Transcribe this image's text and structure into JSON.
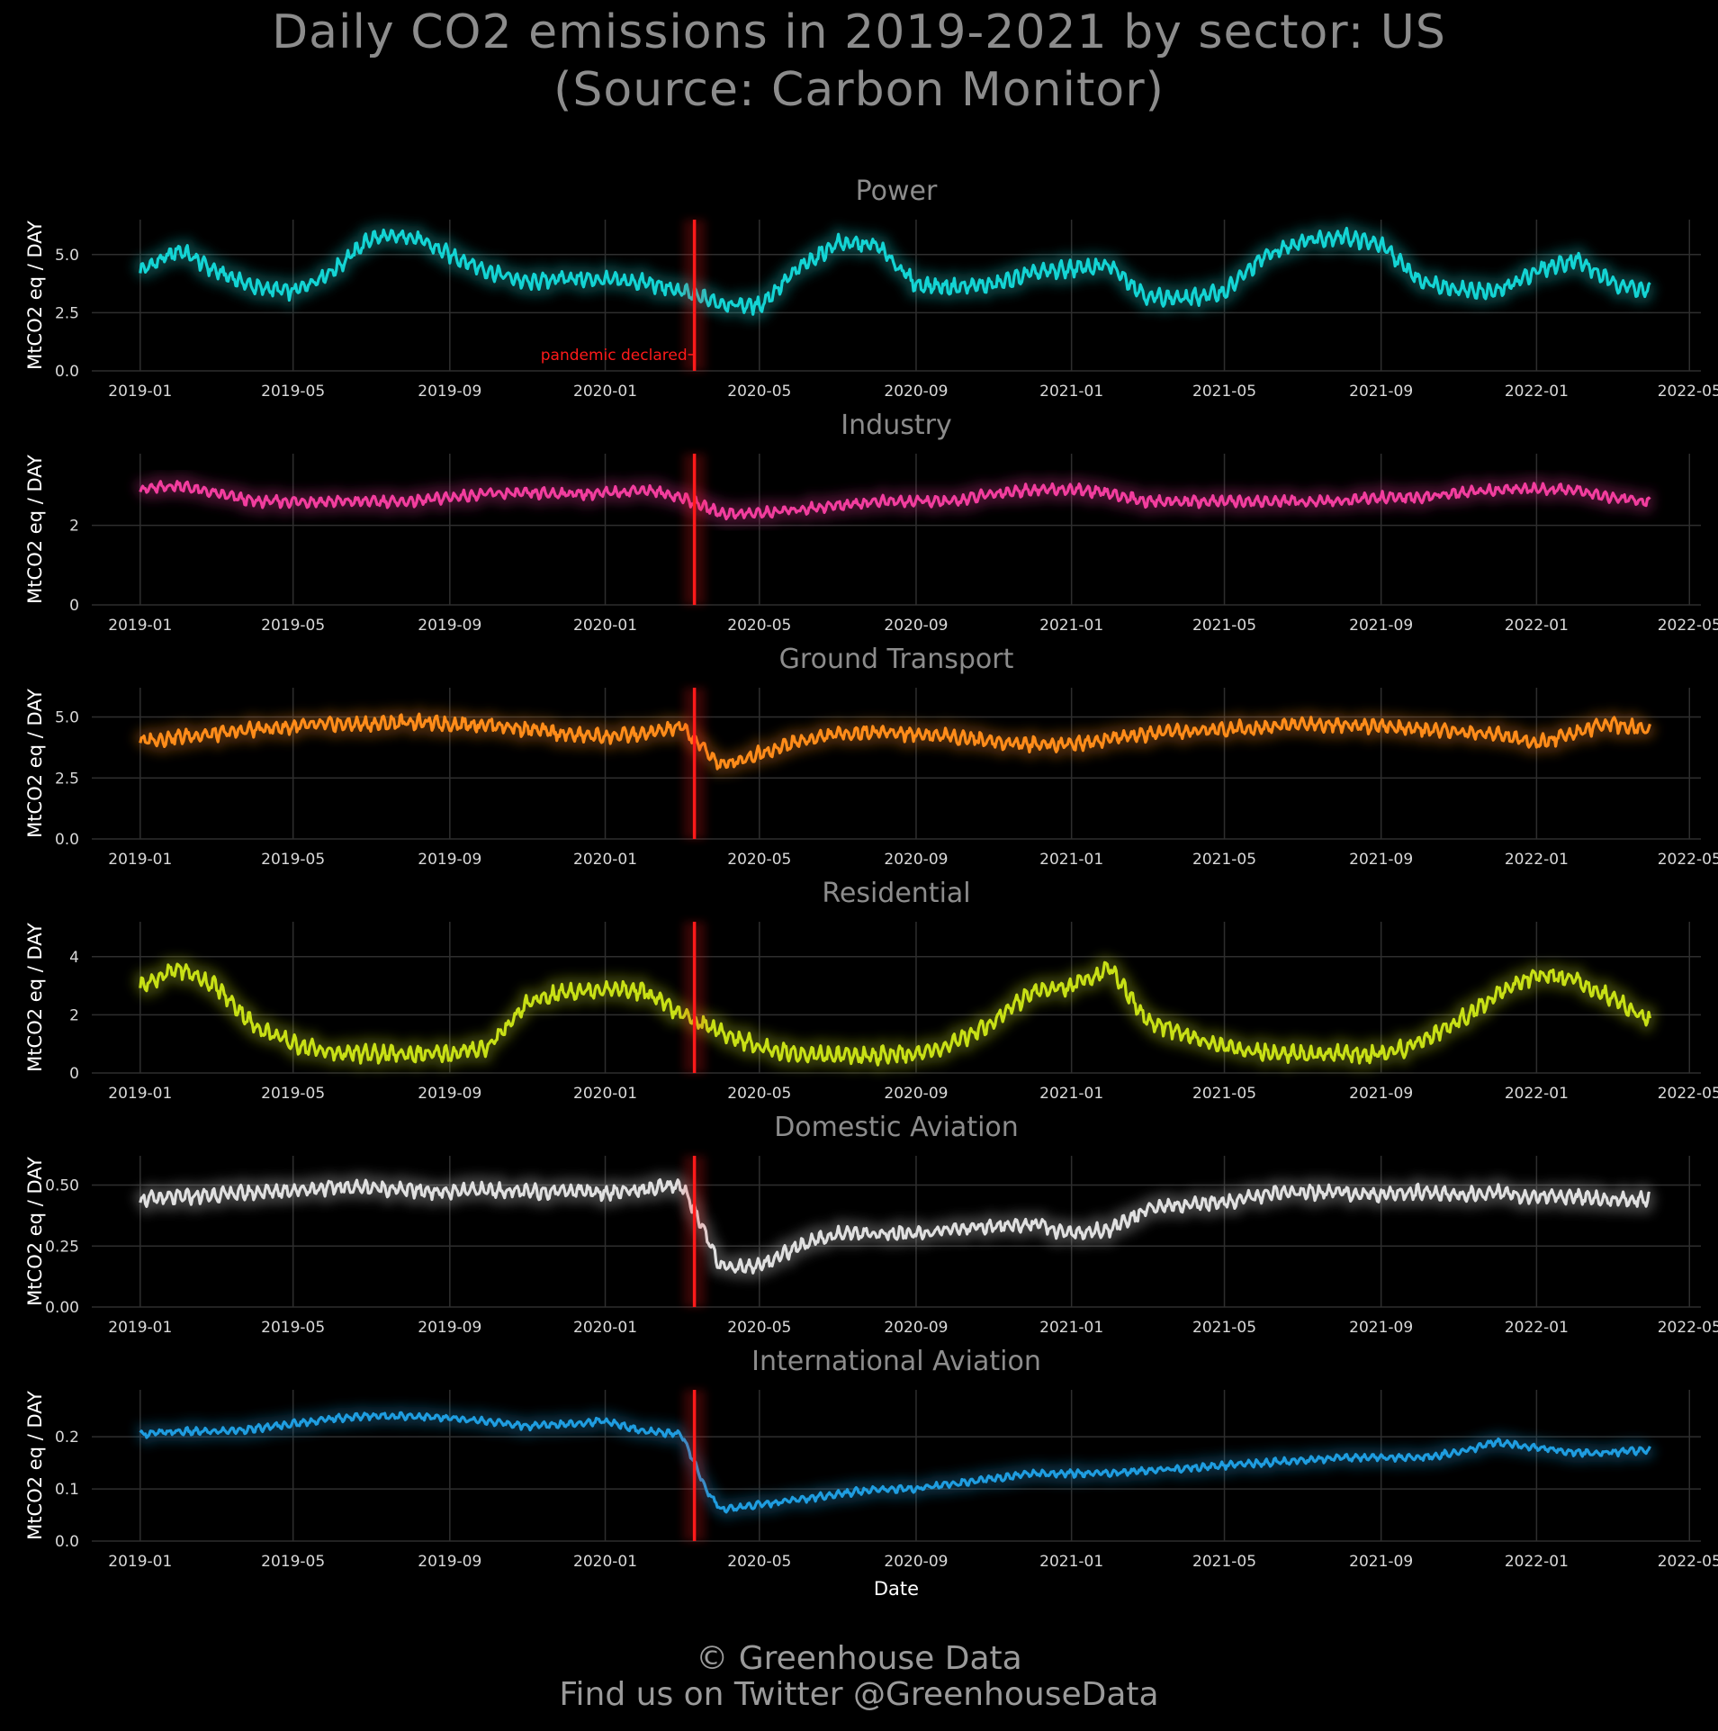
{
  "title_lines": [
    "Daily CO2 emissions in 2019-2021 by sector: US",
    "(Source: Carbon Monitor)"
  ],
  "footer_lines": [
    "© Greenhouse Data",
    "Find us on Twitter @GreenhouseData"
  ],
  "colors": {
    "background": "#000000",
    "title": "#8c8c8c",
    "panel_title": "#8c8c8c",
    "tick": "#d9d9d9",
    "grid": "#2e2e2e",
    "event_line": "#ff1a1a"
  },
  "chart_data": [
    {
      "type": "line",
      "title": "Power",
      "ylabel": "MtCO2 eq / DAY",
      "xlabel": "",
      "color": "#14d4d4",
      "ylim": [
        0,
        6.5
      ],
      "yticks": [
        0,
        2.5,
        5.0
      ],
      "ytick_labels": [
        "0.0",
        "2.5",
        "5.0"
      ],
      "x_range": [
        "2018-11-24",
        "2022-05-10"
      ],
      "xticks": [
        "2019-01",
        "2019-05",
        "2019-09",
        "2020-01",
        "2020-05",
        "2020-09",
        "2021-01",
        "2021-05",
        "2021-09",
        "2022-01",
        "2022-05"
      ],
      "annotation": {
        "text": "pandemic declared",
        "x": "2020-03-11"
      },
      "series": [
        {
          "x": [
            "2019-01-01",
            "2019-02-01",
            "2019-03-01",
            "2019-04-01",
            "2019-05-01",
            "2019-06-01",
            "2019-07-01",
            "2019-08-01",
            "2019-09-01",
            "2019-10-01",
            "2019-11-01",
            "2019-12-01",
            "2020-01-01",
            "2020-02-01",
            "2020-03-01",
            "2020-04-01",
            "2020-05-01",
            "2020-06-01",
            "2020-07-01",
            "2020-08-01",
            "2020-09-01",
            "2020-10-01",
            "2020-11-01",
            "2020-12-01",
            "2021-01-01",
            "2021-02-01",
            "2021-03-01",
            "2021-04-01",
            "2021-05-01",
            "2021-06-01",
            "2021-07-01",
            "2021-08-01",
            "2021-09-01",
            "2021-10-01",
            "2021-11-01",
            "2021-12-01",
            "2022-01-01",
            "2022-02-01",
            "2022-03-01",
            "2022-03-31"
          ],
          "y": [
            4.3,
            5.2,
            4.3,
            3.6,
            3.4,
            4.3,
            5.7,
            5.8,
            5.0,
            4.3,
            3.8,
            4.0,
            3.9,
            3.8,
            3.4,
            2.9,
            2.8,
            4.4,
            5.5,
            5.4,
            3.7,
            3.6,
            3.7,
            4.2,
            4.4,
            4.5,
            3.2,
            3.1,
            3.4,
            4.9,
            5.6,
            5.8,
            5.4,
            3.9,
            3.5,
            3.4,
            4.3,
            4.8,
            3.8,
            3.4
          ],
          "amp": 0.4
        }
      ]
    },
    {
      "type": "line",
      "title": "Industry",
      "ylabel": "MtCO2 eq / DAY",
      "xlabel": "",
      "color": "#f23d9e",
      "ylim": [
        0,
        3.8
      ],
      "yticks": [
        0,
        2
      ],
      "ytick_labels": [
        "0",
        "2"
      ],
      "x_range": [
        "2018-11-24",
        "2022-05-10"
      ],
      "xticks": [
        "2019-01",
        "2019-05",
        "2019-09",
        "2020-01",
        "2020-05",
        "2020-09",
        "2021-01",
        "2021-05",
        "2021-09",
        "2022-01",
        "2022-05"
      ],
      "series": [
        {
          "x": [
            "2019-01-01",
            "2019-02-01",
            "2019-03-01",
            "2019-04-01",
            "2019-05-01",
            "2019-06-01",
            "2019-07-01",
            "2019-08-01",
            "2019-09-01",
            "2019-10-01",
            "2019-11-01",
            "2019-12-01",
            "2020-01-01",
            "2020-02-01",
            "2020-03-01",
            "2020-04-01",
            "2020-05-01",
            "2020-06-01",
            "2020-07-01",
            "2020-08-01",
            "2020-09-01",
            "2020-10-01",
            "2020-11-01",
            "2020-12-01",
            "2021-01-01",
            "2021-02-01",
            "2021-03-01",
            "2021-04-01",
            "2021-05-01",
            "2021-06-01",
            "2021-07-01",
            "2021-08-01",
            "2021-09-01",
            "2021-10-01",
            "2021-11-01",
            "2021-12-01",
            "2022-01-01",
            "2022-02-01",
            "2022-03-01",
            "2022-03-31"
          ],
          "y": [
            2.9,
            3.0,
            2.8,
            2.6,
            2.6,
            2.6,
            2.6,
            2.6,
            2.7,
            2.8,
            2.8,
            2.8,
            2.8,
            2.9,
            2.7,
            2.3,
            2.3,
            2.4,
            2.5,
            2.6,
            2.6,
            2.6,
            2.8,
            2.9,
            2.9,
            2.8,
            2.6,
            2.6,
            2.6,
            2.6,
            2.6,
            2.6,
            2.7,
            2.7,
            2.8,
            2.9,
            2.9,
            2.9,
            2.7,
            2.6
          ],
          "amp": 0.16
        }
      ]
    },
    {
      "type": "line",
      "title": "Ground Transport",
      "ylabel": "MtCO2 eq / DAY",
      "xlabel": "",
      "color": "#ff8c1a",
      "ylim": [
        0,
        6.2
      ],
      "yticks": [
        0,
        2.5,
        5.0
      ],
      "ytick_labels": [
        "0.0",
        "2.5",
        "5.0"
      ],
      "x_range": [
        "2018-11-24",
        "2022-05-10"
      ],
      "xticks": [
        "2019-01",
        "2019-05",
        "2019-09",
        "2020-01",
        "2020-05",
        "2020-09",
        "2021-01",
        "2021-05",
        "2021-09",
        "2022-01",
        "2022-05"
      ],
      "series": [
        {
          "x": [
            "2019-01-01",
            "2019-02-01",
            "2019-03-01",
            "2019-04-01",
            "2019-05-01",
            "2019-06-01",
            "2019-07-01",
            "2019-08-01",
            "2019-09-01",
            "2019-10-01",
            "2019-11-01",
            "2019-12-01",
            "2020-01-01",
            "2020-02-01",
            "2020-03-01",
            "2020-04-01",
            "2020-05-01",
            "2020-06-01",
            "2020-07-01",
            "2020-08-01",
            "2020-09-01",
            "2020-10-01",
            "2020-11-01",
            "2020-12-01",
            "2021-01-01",
            "2021-02-01",
            "2021-03-01",
            "2021-04-01",
            "2021-05-01",
            "2021-06-01",
            "2021-07-01",
            "2021-08-01",
            "2021-09-01",
            "2021-10-01",
            "2021-11-01",
            "2021-12-01",
            "2022-01-01",
            "2022-02-01",
            "2022-03-01",
            "2022-03-31"
          ],
          "y": [
            4.0,
            4.2,
            4.3,
            4.5,
            4.6,
            4.7,
            4.7,
            4.8,
            4.7,
            4.7,
            4.5,
            4.3,
            4.2,
            4.3,
            4.6,
            3.0,
            3.5,
            4.0,
            4.3,
            4.4,
            4.3,
            4.2,
            4.0,
            3.9,
            3.9,
            4.1,
            4.3,
            4.4,
            4.5,
            4.6,
            4.7,
            4.7,
            4.6,
            4.5,
            4.4,
            4.3,
            3.9,
            4.4,
            4.7,
            4.5
          ],
          "amp": 0.35
        }
      ]
    },
    {
      "type": "line",
      "title": "Residential",
      "ylabel": "MtCO2 eq / DAY",
      "xlabel": "",
      "color": "#c8e016",
      "ylim": [
        0,
        5.2
      ],
      "yticks": [
        0,
        2,
        4
      ],
      "ytick_labels": [
        "0",
        "2",
        "4"
      ],
      "x_range": [
        "2018-11-24",
        "2022-05-10"
      ],
      "xticks": [
        "2019-01",
        "2019-05",
        "2019-09",
        "2020-01",
        "2020-05",
        "2020-09",
        "2021-01",
        "2021-05",
        "2021-09",
        "2022-01",
        "2022-05"
      ],
      "series": [
        {
          "x": [
            "2019-01-01",
            "2019-02-01",
            "2019-03-01",
            "2019-04-01",
            "2019-05-01",
            "2019-06-01",
            "2019-07-01",
            "2019-08-01",
            "2019-09-01",
            "2019-10-01",
            "2019-11-01",
            "2019-12-01",
            "2020-01-01",
            "2020-02-01",
            "2020-03-01",
            "2020-04-01",
            "2020-05-01",
            "2020-06-01",
            "2020-07-01",
            "2020-08-01",
            "2020-09-01",
            "2020-10-01",
            "2020-11-01",
            "2020-12-01",
            "2021-01-01",
            "2021-02-01",
            "2021-03-01",
            "2021-04-01",
            "2021-05-01",
            "2021-06-01",
            "2021-07-01",
            "2021-08-01",
            "2021-09-01",
            "2021-10-01",
            "2021-11-01",
            "2021-12-01",
            "2022-01-01",
            "2022-02-01",
            "2022-03-01",
            "2022-03-31"
          ],
          "y": [
            3.0,
            3.6,
            3.0,
            1.6,
            1.0,
            0.7,
            0.65,
            0.65,
            0.65,
            0.9,
            2.4,
            2.8,
            2.9,
            2.8,
            2.0,
            1.4,
            0.9,
            0.65,
            0.6,
            0.6,
            0.65,
            1.0,
            1.8,
            2.8,
            3.0,
            3.6,
            1.8,
            1.3,
            0.9,
            0.7,
            0.65,
            0.65,
            0.65,
            1.0,
            1.8,
            2.7,
            3.4,
            3.2,
            2.6,
            1.8
          ],
          "amp": 0.35
        }
      ]
    },
    {
      "type": "line",
      "title": "Domestic Aviation",
      "ylabel": "MtCO2 eq / DAY",
      "xlabel": "",
      "color": "#e0e0e0",
      "ylim": [
        0,
        0.62
      ],
      "yticks": [
        0,
        0.25,
        0.5
      ],
      "ytick_labels": [
        "0.00",
        "0.25",
        "0.50"
      ],
      "x_range": [
        "2018-11-24",
        "2022-05-10"
      ],
      "xticks": [
        "2019-01",
        "2019-05",
        "2019-09",
        "2020-01",
        "2020-05",
        "2020-09",
        "2021-01",
        "2021-05",
        "2021-09",
        "2022-01",
        "2022-05"
      ],
      "series": [
        {
          "x": [
            "2019-01-01",
            "2019-02-01",
            "2019-03-01",
            "2019-04-01",
            "2019-05-01",
            "2019-06-01",
            "2019-07-01",
            "2019-08-01",
            "2019-09-01",
            "2019-10-01",
            "2019-11-01",
            "2019-12-01",
            "2020-01-01",
            "2020-02-01",
            "2020-03-01",
            "2020-03-20",
            "2020-04-01",
            "2020-05-01",
            "2020-06-01",
            "2020-07-01",
            "2020-08-01",
            "2020-09-01",
            "2020-10-01",
            "2020-11-01",
            "2020-12-01",
            "2021-01-01",
            "2021-02-01",
            "2021-03-01",
            "2021-04-01",
            "2021-05-01",
            "2021-06-01",
            "2021-07-01",
            "2021-08-01",
            "2021-09-01",
            "2021-10-01",
            "2021-11-01",
            "2021-12-01",
            "2022-01-01",
            "2022-02-01",
            "2022-03-01",
            "2022-03-31"
          ],
          "y": [
            0.44,
            0.45,
            0.46,
            0.47,
            0.48,
            0.49,
            0.49,
            0.48,
            0.47,
            0.48,
            0.47,
            0.48,
            0.47,
            0.48,
            0.5,
            0.3,
            0.16,
            0.17,
            0.25,
            0.3,
            0.3,
            0.3,
            0.32,
            0.33,
            0.34,
            0.3,
            0.32,
            0.4,
            0.42,
            0.43,
            0.46,
            0.47,
            0.47,
            0.46,
            0.47,
            0.46,
            0.47,
            0.45,
            0.45,
            0.44,
            0.44
          ],
          "amp": 0.035
        }
      ]
    },
    {
      "type": "line",
      "title": "International Aviation",
      "ylabel": "MtCO2 eq / DAY",
      "xlabel": "Date",
      "color": "#1f9de0",
      "ylim": [
        0,
        0.29
      ],
      "yticks": [
        0,
        0.1,
        0.2
      ],
      "ytick_labels": [
        "0.0",
        "0.1",
        "0.2"
      ],
      "x_range": [
        "2018-11-24",
        "2022-05-10"
      ],
      "xticks": [
        "2019-01",
        "2019-05",
        "2019-09",
        "2020-01",
        "2020-05",
        "2020-09",
        "2021-01",
        "2021-05",
        "2021-09",
        "2022-01",
        "2022-05"
      ],
      "series": [
        {
          "x": [
            "2019-01-01",
            "2019-02-01",
            "2019-03-01",
            "2019-04-01",
            "2019-05-01",
            "2019-06-01",
            "2019-07-01",
            "2019-08-01",
            "2019-09-01",
            "2019-10-01",
            "2019-11-01",
            "2019-12-01",
            "2020-01-01",
            "2020-02-01",
            "2020-03-01",
            "2020-03-20",
            "2020-04-01",
            "2020-05-01",
            "2020-06-01",
            "2020-07-01",
            "2020-08-01",
            "2020-09-01",
            "2020-10-01",
            "2020-11-01",
            "2020-12-01",
            "2021-01-01",
            "2021-02-01",
            "2021-03-01",
            "2021-04-01",
            "2021-05-01",
            "2021-06-01",
            "2021-07-01",
            "2021-08-01",
            "2021-09-01",
            "2021-10-01",
            "2021-11-01",
            "2021-12-01",
            "2022-01-01",
            "2022-02-01",
            "2022-03-01",
            "2022-03-31"
          ],
          "y": [
            0.205,
            0.21,
            0.21,
            0.215,
            0.225,
            0.235,
            0.24,
            0.24,
            0.235,
            0.23,
            0.22,
            0.225,
            0.23,
            0.21,
            0.205,
            0.1,
            0.06,
            0.07,
            0.08,
            0.09,
            0.1,
            0.1,
            0.11,
            0.12,
            0.13,
            0.13,
            0.13,
            0.135,
            0.14,
            0.145,
            0.15,
            0.155,
            0.16,
            0.16,
            0.16,
            0.17,
            0.19,
            0.18,
            0.17,
            0.17,
            0.175
          ],
          "amp": 0.008
        }
      ]
    }
  ]
}
